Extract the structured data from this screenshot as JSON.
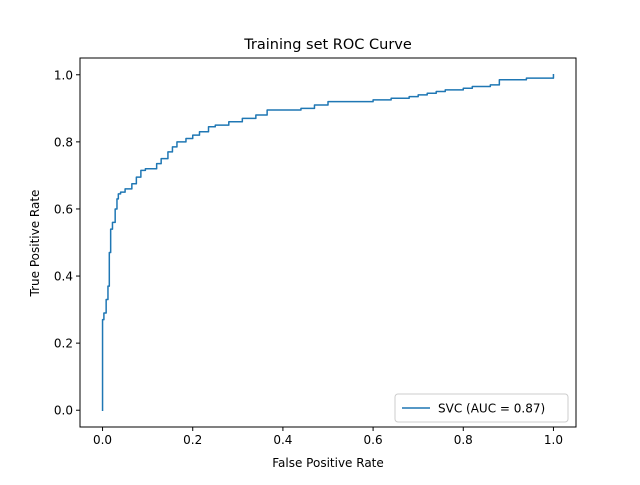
{
  "chart_data": {
    "type": "line",
    "title": "Training set ROC Curve",
    "xlabel": "False Positive Rate",
    "ylabel": "True Positive Rate",
    "xlim": [
      -0.05,
      1.05
    ],
    "ylim": [
      -0.05,
      1.05
    ],
    "xticks": [
      0.0,
      0.2,
      0.4,
      0.6,
      0.8,
      1.0
    ],
    "yticks": [
      0.0,
      0.2,
      0.4,
      0.6,
      0.8,
      1.0
    ],
    "xtick_labels": [
      "0.0",
      "0.2",
      "0.4",
      "0.6",
      "0.8",
      "1.0"
    ],
    "ytick_labels": [
      "0.0",
      "0.2",
      "0.4",
      "0.6",
      "0.8",
      "1.0"
    ],
    "grid": false,
    "legend": {
      "position": "lower-right"
    },
    "series": [
      {
        "name": "SVC (AUC = 0.87)",
        "color": "#1f77b4",
        "x": [
          0.0,
          0.0,
          0.003,
          0.003,
          0.008,
          0.008,
          0.012,
          0.012,
          0.015,
          0.015,
          0.018,
          0.018,
          0.022,
          0.022,
          0.028,
          0.028,
          0.032,
          0.032,
          0.035,
          0.035,
          0.04,
          0.04,
          0.05,
          0.05,
          0.065,
          0.065,
          0.075,
          0.075,
          0.085,
          0.085,
          0.095,
          0.095,
          0.12,
          0.12,
          0.13,
          0.13,
          0.145,
          0.145,
          0.155,
          0.155,
          0.165,
          0.165,
          0.185,
          0.185,
          0.2,
          0.2,
          0.215,
          0.215,
          0.235,
          0.235,
          0.25,
          0.25,
          0.28,
          0.28,
          0.31,
          0.31,
          0.34,
          0.34,
          0.365,
          0.365,
          0.44,
          0.44,
          0.47,
          0.47,
          0.5,
          0.5,
          0.6,
          0.6,
          0.64,
          0.64,
          0.68,
          0.68,
          0.7,
          0.7,
          0.72,
          0.72,
          0.74,
          0.74,
          0.76,
          0.76,
          0.8,
          0.8,
          0.82,
          0.82,
          0.86,
          0.86,
          0.88,
          0.88,
          0.94,
          0.94,
          1.0,
          1.0
        ],
        "y": [
          0.0,
          0.27,
          0.27,
          0.29,
          0.29,
          0.33,
          0.33,
          0.37,
          0.37,
          0.47,
          0.47,
          0.54,
          0.54,
          0.56,
          0.56,
          0.6,
          0.6,
          0.63,
          0.63,
          0.645,
          0.645,
          0.65,
          0.65,
          0.66,
          0.66,
          0.675,
          0.675,
          0.695,
          0.695,
          0.715,
          0.715,
          0.72,
          0.72,
          0.735,
          0.735,
          0.75,
          0.75,
          0.77,
          0.77,
          0.785,
          0.785,
          0.8,
          0.8,
          0.81,
          0.81,
          0.82,
          0.82,
          0.83,
          0.83,
          0.845,
          0.845,
          0.85,
          0.85,
          0.86,
          0.86,
          0.87,
          0.87,
          0.88,
          0.88,
          0.895,
          0.895,
          0.9,
          0.9,
          0.91,
          0.91,
          0.92,
          0.92,
          0.925,
          0.925,
          0.93,
          0.93,
          0.935,
          0.935,
          0.94,
          0.94,
          0.945,
          0.945,
          0.95,
          0.95,
          0.955,
          0.955,
          0.96,
          0.96,
          0.965,
          0.965,
          0.97,
          0.97,
          0.985,
          0.985,
          0.99,
          0.99,
          1.0
        ]
      }
    ]
  }
}
